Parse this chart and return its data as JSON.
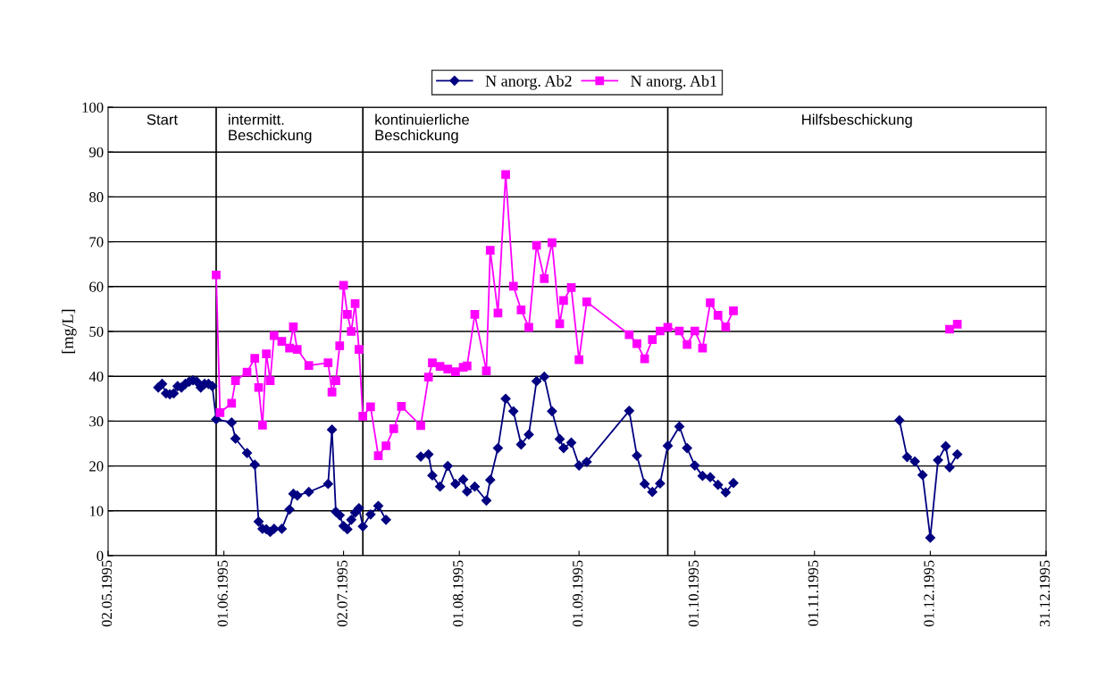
{
  "chart_data": {
    "type": "line",
    "ylabel": "[mg/L]",
    "xlim": [
      "1995-05-02",
      "1995-12-31"
    ],
    "xticks": [
      {
        "value": "1995-05-02",
        "label": "02.05.1995"
      },
      {
        "value": "1995-06-01",
        "label": "01.06.1995"
      },
      {
        "value": "1995-07-02",
        "label": "02.07.1995"
      },
      {
        "value": "1995-08-01",
        "label": "01.08.1995"
      },
      {
        "value": "1995-09-01",
        "label": "01.09.1995"
      },
      {
        "value": "1995-10-01",
        "label": "01.10.1995"
      },
      {
        "value": "1995-11-01",
        "label": "01.11.1995"
      },
      {
        "value": "1995-12-01",
        "label": "01.12.1995"
      },
      {
        "value": "1995-12-31",
        "label": "31.12.1995"
      }
    ],
    "ylim": [
      0,
      100
    ],
    "yticks": [
      0,
      10,
      20,
      30,
      40,
      50,
      60,
      70,
      80,
      90,
      100
    ],
    "grid": "y",
    "legend": "top",
    "line_style": "solid",
    "ref_lines": [
      {
        "axis": "x",
        "value": "1995-05-30",
        "color": "#000000"
      },
      {
        "axis": "x",
        "value": "1995-07-07",
        "color": "#000000"
      },
      {
        "axis": "x",
        "value": "1995-09-24",
        "color": "#000000"
      }
    ],
    "annotations": [
      "Start",
      "intermitt.\nBeschickung",
      "kontinuierliche\nBeschickung",
      "Hilfsbeschickung"
    ],
    "series": [
      {
        "name": "N anorg. Ab2",
        "color": "#000080",
        "marker": "diamond",
        "x": [
          "1995-05-15",
          "1995-05-16",
          "1995-05-17",
          "1995-05-18",
          "1995-05-19",
          "1995-05-20",
          "1995-05-21",
          "1995-05-22",
          "1995-05-23",
          "1995-05-24",
          "1995-05-25",
          "1995-05-26",
          "1995-05-27",
          "1995-05-28",
          "1995-05-29",
          "1995-05-30",
          "1995-06-03",
          "1995-06-04",
          "1995-06-07",
          "1995-06-09",
          "1995-06-10",
          "1995-06-11",
          "1995-06-12",
          "1995-06-13",
          "1995-06-14",
          "1995-06-16",
          "1995-06-18",
          "1995-06-19",
          "1995-06-20",
          "1995-06-23",
          "1995-06-28",
          "1995-06-29",
          "1995-06-30",
          "1995-07-01",
          "1995-07-02",
          "1995-07-03",
          "1995-07-04",
          "1995-07-05",
          "1995-07-06",
          "1995-07-07",
          "1995-07-09",
          "1995-07-11",
          "1995-07-13",
          "1995-07-18",
          "1995-07-22",
          "1995-07-24",
          "1995-07-25",
          "1995-07-27",
          "1995-07-29",
          "1995-07-31",
          "1995-08-02",
          "1995-08-03",
          "1995-08-05",
          "1995-08-08",
          "1995-08-09",
          "1995-08-11",
          "1995-08-13",
          "1995-08-15",
          "1995-08-17",
          "1995-08-19",
          "1995-08-21",
          "1995-08-23",
          "1995-08-25",
          "1995-08-27",
          "1995-08-28",
          "1995-08-30",
          "1995-09-01",
          "1995-09-03",
          "1995-09-14",
          "1995-09-16",
          "1995-09-18",
          "1995-09-20",
          "1995-09-22",
          "1995-09-24",
          "1995-09-27",
          "1995-09-29",
          "1995-10-01",
          "1995-10-03",
          "1995-10-05",
          "1995-10-07",
          "1995-10-09",
          "1995-10-11",
          "1995-11-01",
          "1995-11-23",
          "1995-11-25",
          "1995-11-27",
          "1995-11-29",
          "1995-12-01",
          "1995-12-03",
          "1995-12-05",
          "1995-12-06",
          "1995-12-08"
        ],
        "values": [
          37.5,
          38.3,
          36.2,
          36,
          36.2,
          37.8,
          37.5,
          38.3,
          38.8,
          39.1,
          38.8,
          37.5,
          38.3,
          38.3,
          37.8,
          30.4,
          29.7,
          26.1,
          22.9,
          20.3,
          7.6,
          6,
          5.9,
          5.3,
          6,
          6,
          10.3,
          13.8,
          13.4,
          14.2,
          16,
          28.1,
          9.8,
          9,
          6.6,
          5.9,
          8,
          9.6,
          10.6,
          6.5,
          9.2,
          11.1,
          8,
          null,
          22.1,
          22.6,
          17.9,
          15.4,
          20,
          16,
          17,
          14.3,
          15.4,
          12.3,
          16.9,
          24,
          35,
          32.2,
          24.8,
          27,
          38.9,
          39.9,
          32.2,
          26,
          24,
          25.2,
          20.1,
          20.9,
          32.3,
          22.3,
          16,
          14.2,
          16.1,
          24.5,
          28.8,
          24,
          20.1,
          17.8,
          17.5,
          15.8,
          14.1,
          16.2,
          null,
          30.2,
          22,
          21,
          18,
          4,
          21.3,
          24.4,
          19.7,
          22.6
        ]
      },
      {
        "name": "N anorg. Ab1",
        "color": "#ff00ff",
        "marker": "square",
        "x": [
          "1995-05-30",
          "1995-05-31",
          "1995-06-03",
          "1995-06-04",
          "1995-06-07",
          "1995-06-09",
          "1995-06-10",
          "1995-06-11",
          "1995-06-12",
          "1995-06-13",
          "1995-06-14",
          "1995-06-16",
          "1995-06-18",
          "1995-06-19",
          "1995-06-20",
          "1995-06-23",
          "1995-06-28",
          "1995-06-29",
          "1995-06-30",
          "1995-07-01",
          "1995-07-02",
          "1995-07-03",
          "1995-07-04",
          "1995-07-05",
          "1995-07-06",
          "1995-07-07",
          "1995-07-09",
          "1995-07-11",
          "1995-07-13",
          "1995-07-15",
          "1995-07-17",
          "1995-07-22",
          "1995-07-24",
          "1995-07-25",
          "1995-07-27",
          "1995-07-29",
          "1995-07-31",
          "1995-08-02",
          "1995-08-03",
          "1995-08-05",
          "1995-08-08",
          "1995-08-09",
          "1995-08-11",
          "1995-08-13",
          "1995-08-15",
          "1995-08-17",
          "1995-08-19",
          "1995-08-21",
          "1995-08-23",
          "1995-08-25",
          "1995-08-27",
          "1995-08-28",
          "1995-08-30",
          "1995-09-01",
          "1995-09-03",
          "1995-09-14",
          "1995-09-16",
          "1995-09-18",
          "1995-09-20",
          "1995-09-22",
          "1995-09-24",
          "1995-09-27",
          "1995-09-29",
          "1995-10-01",
          "1995-10-03",
          "1995-10-05",
          "1995-10-07",
          "1995-10-09",
          "1995-10-11",
          "1995-11-01",
          "1995-12-06",
          "1995-12-08"
        ],
        "values": [
          62.6,
          31.9,
          34,
          39,
          40.9,
          44,
          37.5,
          29.1,
          45,
          39,
          49.1,
          47.8,
          46.3,
          51,
          46,
          42.4,
          43,
          36.5,
          39,
          46.8,
          60.3,
          53.8,
          50,
          56.2,
          46,
          31.1,
          33.2,
          22.3,
          24.5,
          28.3,
          33.3,
          29,
          39.8,
          43,
          42.2,
          41.6,
          41,
          42,
          42.3,
          53.8,
          41.2,
          68.1,
          54.1,
          85,
          60.1,
          54.8,
          50.9,
          69.2,
          61.8,
          69.8,
          51.7,
          56.9,
          59.8,
          43.7,
          56.6,
          49.3,
          47.3,
          43.9,
          48.2,
          50.1,
          50.9,
          50.1,
          47.1,
          50.1,
          46.3,
          56.4,
          53.6,
          51,
          54.6,
          null,
          50.5,
          51.6
        ]
      }
    ]
  }
}
